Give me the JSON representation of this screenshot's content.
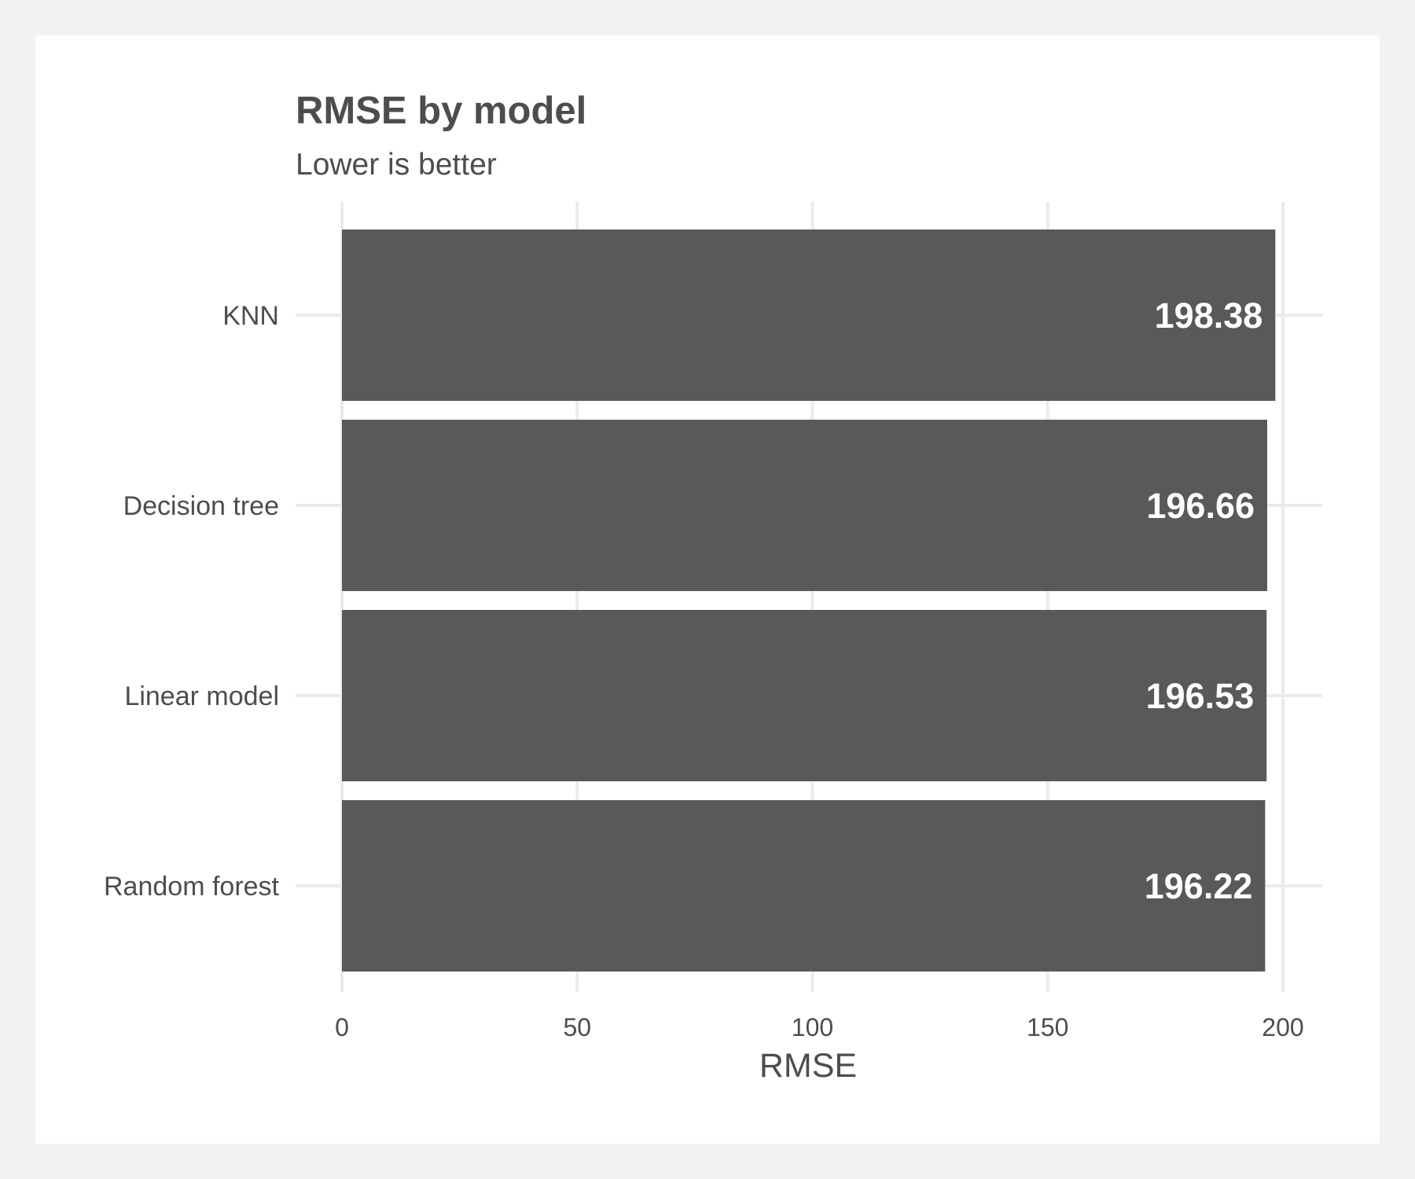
{
  "chart_data": {
    "type": "bar",
    "orientation": "horizontal",
    "title": "RMSE by model",
    "subtitle": "Lower is better",
    "xlabel": "RMSE",
    "ylabel": "",
    "categories": [
      "KNN",
      "Decision tree",
      "Linear model",
      "Random forest"
    ],
    "values": [
      198.38,
      196.66,
      196.53,
      196.22
    ],
    "value_labels": [
      "198.38",
      "196.66",
      "196.53",
      "196.22"
    ],
    "x_ticks": [
      0,
      50,
      100,
      150,
      200
    ],
    "x_tick_labels": [
      "0",
      "50",
      "100",
      "150",
      "200"
    ],
    "xlim": [
      0,
      208.3
    ],
    "grid": true,
    "bar_color": "#595959",
    "background": "#ffffff",
    "page_background": "#f2f2f2",
    "legend": "none"
  }
}
